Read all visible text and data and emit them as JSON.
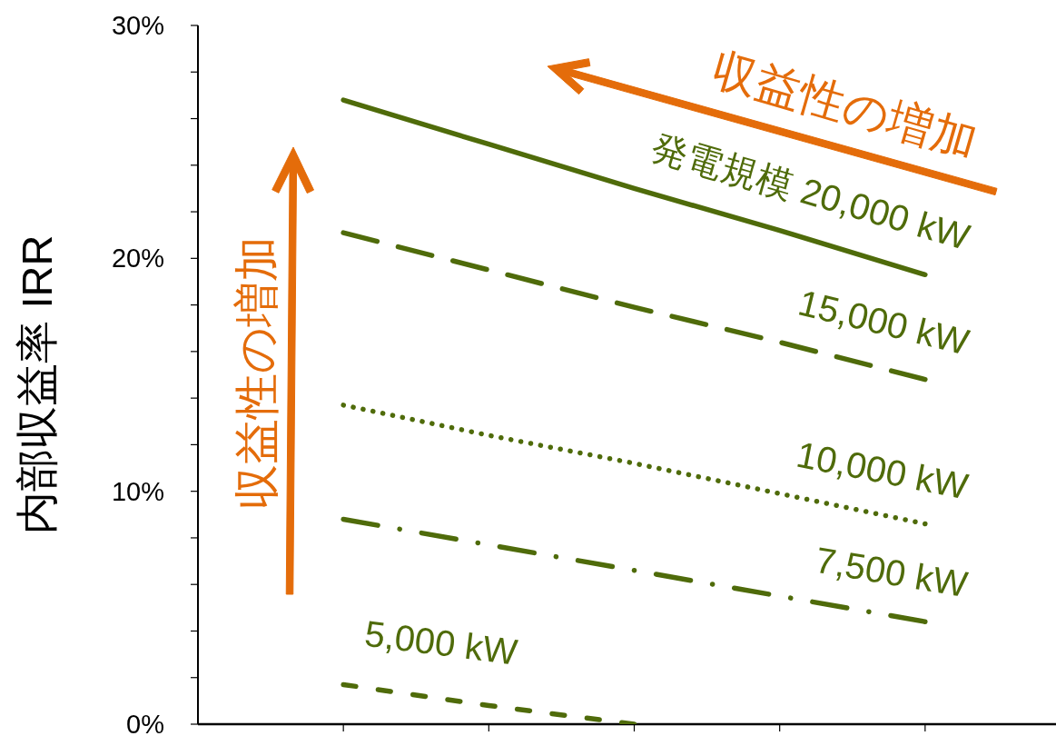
{
  "chart_data": {
    "type": "line",
    "ylabel": "内部収益率 IRR",
    "categories": [
      null,
      null,
      null,
      null,
      null
    ],
    "tick_labels": "y",
    "ylim": [
      0,
      30
    ],
    "yticks": [
      {
        "value": 0,
        "label": "0%"
      },
      {
        "value": 2,
        "label": null
      },
      {
        "value": 4,
        "label": null
      },
      {
        "value": 6,
        "label": null
      },
      {
        "value": 8,
        "label": null
      },
      {
        "value": 10,
        "label": "10%"
      },
      {
        "value": 12,
        "label": null
      },
      {
        "value": 14,
        "label": null
      },
      {
        "value": 16,
        "label": null
      },
      {
        "value": 18,
        "label": null
      },
      {
        "value": 20,
        "label": "20%"
      },
      {
        "value": 22,
        "label": null
      },
      {
        "value": 24,
        "label": null
      },
      {
        "value": 26,
        "label": null
      },
      {
        "value": 28,
        "label": null
      },
      {
        "value": 30,
        "label": "30%"
      }
    ],
    "series": [
      {
        "name": "発電規模 20,000 kW",
        "color": "#4f6b0a",
        "line_style": "solid",
        "values": [
          26.8,
          24.9,
          23.0,
          21.2,
          19.3
        ]
      },
      {
        "name": "15,000 kW",
        "color": "#4f6b0a",
        "line_style": "longdash",
        "values": [
          21.1,
          19.5,
          17.9,
          16.4,
          14.8
        ]
      },
      {
        "name": "10,000 kW",
        "color": "#4f6b0a",
        "line_style": "dotted",
        "values": [
          13.7,
          12.4,
          11.2,
          9.9,
          8.6
        ]
      },
      {
        "name": "7,500 kW",
        "color": "#4f6b0a",
        "line_style": "dashdot",
        "values": [
          8.8,
          7.7,
          6.6,
          5.5,
          4.4
        ]
      },
      {
        "name": "5,000 kW",
        "color": "#4f6b0a",
        "line_style": "dashed",
        "values": [
          1.7,
          0.8,
          0,
          null,
          null
        ]
      }
    ],
    "annotations": [
      "収益性の増加",
      "収益性の増加"
    ]
  }
}
